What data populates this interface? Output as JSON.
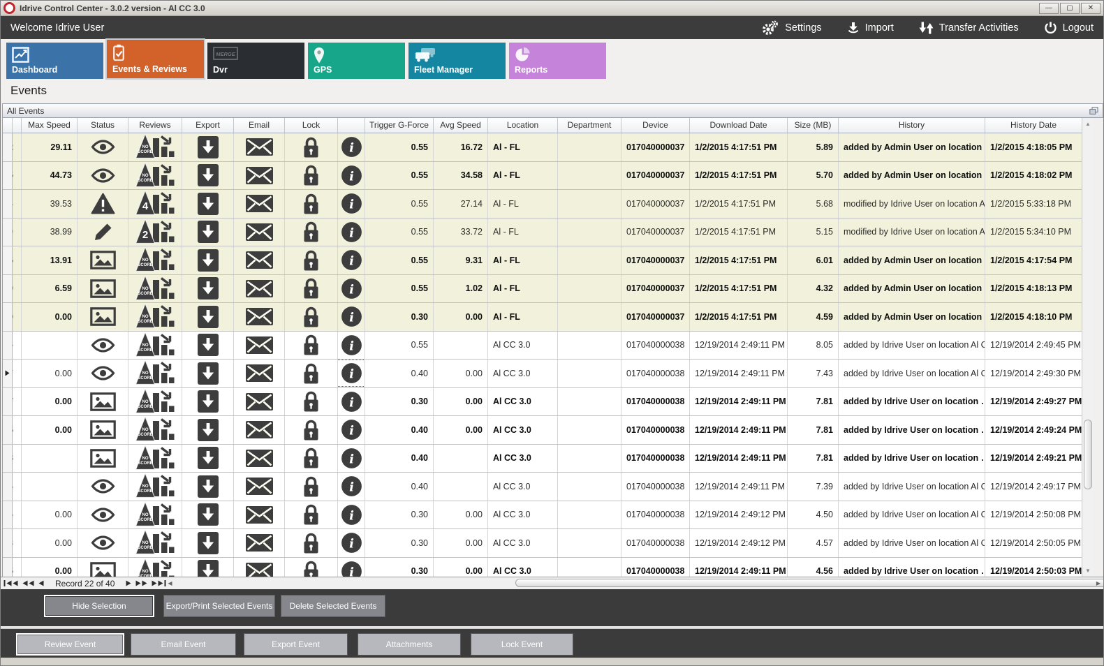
{
  "window": {
    "title": "Idrive Control Center - 3.0.2 version - Al CC 3.0"
  },
  "topbar": {
    "welcome": "Welcome Idrive User",
    "actions": [
      {
        "label": "Settings",
        "icon": "gears-icon"
      },
      {
        "label": "Import",
        "icon": "import-icon"
      },
      {
        "label": "Transfer Activities",
        "icon": "transfer-icon"
      },
      {
        "label": "Logout",
        "icon": "power-icon"
      }
    ]
  },
  "tabs": [
    {
      "label": "Dashboard",
      "icon": "line-chart-icon",
      "color": "#3b73a8",
      "active": false
    },
    {
      "label": "Events & Reviews",
      "icon": "checklist-icon",
      "color": "#d2622a",
      "active": true
    },
    {
      "label": "Dvr",
      "icon": "merge-icon",
      "color": "#2a2e33",
      "active": false
    },
    {
      "label": "GPS",
      "icon": "map-pin-icon",
      "color": "#17a689",
      "active": false
    },
    {
      "label": "Fleet Manager",
      "icon": "vehicles-icon",
      "color": "#1486a2",
      "active": false
    },
    {
      "label": "Reports",
      "icon": "pie-chart-icon",
      "color": "#c584da",
      "active": false
    }
  ],
  "page_title": "Events",
  "panel_title": "All Events",
  "table": {
    "columns": [
      "",
      "",
      "Max Speed",
      "Status",
      "Reviews",
      "Export",
      "Email",
      "Lock",
      "",
      "Trigger G-Force",
      "Avg Speed",
      "Location",
      "Department",
      "Device",
      "Download Date",
      "Size (MB)",
      "History",
      "History Date"
    ],
    "rows": [
      {
        "id": "2",
        "max_speed": "29.11",
        "status_icon": "eye-icon",
        "review_badge": "NO SCORE",
        "trigger_g_force": "0.55",
        "avg_speed": "16.72",
        "location": "Al - FL",
        "department": "",
        "device": "017040000037",
        "download_date": "1/2/2015 4:17:51 PM",
        "size_mb": "5.89",
        "history": "added by Admin User on location …",
        "history_date": "1/2/2015 4:18:05 PM",
        "bold": true,
        "shaded": true,
        "current": false,
        "info_focused": false
      },
      {
        "id": "5",
        "max_speed": "44.73",
        "status_icon": "eye-icon",
        "review_badge": "NO SCORE",
        "trigger_g_force": "0.55",
        "avg_speed": "34.58",
        "location": "Al - FL",
        "department": "",
        "device": "017040000037",
        "download_date": "1/2/2015 4:17:51 PM",
        "size_mb": "5.70",
        "history": "added by Admin User on location …",
        "history_date": "1/2/2015 4:18:02 PM",
        "bold": true,
        "shaded": true,
        "current": false,
        "info_focused": false
      },
      {
        "id": "4",
        "max_speed": "39.53",
        "status_icon": "warning-icon",
        "review_badge": "4",
        "trigger_g_force": "0.55",
        "avg_speed": "27.14",
        "location": "Al - FL",
        "department": "",
        "device": "017040000037",
        "download_date": "1/2/2015 4:17:51 PM",
        "size_mb": "5.68",
        "history": "modified by Idrive User on location Al C…",
        "history_date": "1/2/2015 5:33:18 PM",
        "bold": false,
        "shaded": true,
        "current": false,
        "info_focused": false
      },
      {
        "id": "9",
        "max_speed": "38.99",
        "status_icon": "pencil-icon",
        "review_badge": "2",
        "trigger_g_force": "0.55",
        "avg_speed": "33.72",
        "location": "Al - FL",
        "department": "",
        "device": "017040000037",
        "download_date": "1/2/2015 4:17:51 PM",
        "size_mb": "5.15",
        "history": "modified by Idrive User on location Al C…",
        "history_date": "1/2/2015 5:34:10 PM",
        "bold": false,
        "shaded": true,
        "current": false,
        "info_focused": false
      },
      {
        "id": "5",
        "max_speed": "13.91",
        "status_icon": "image-icon",
        "review_badge": "NO SCORE",
        "trigger_g_force": "0.55",
        "avg_speed": "9.31",
        "location": "Al - FL",
        "department": "",
        "device": "017040000037",
        "download_date": "1/2/2015 4:17:51 PM",
        "size_mb": "6.01",
        "history": "added by Admin User on location …",
        "history_date": "1/2/2015 4:17:54 PM",
        "bold": true,
        "shaded": true,
        "current": false,
        "info_focused": false
      },
      {
        "id": "0",
        "max_speed": "6.59",
        "status_icon": "image-icon",
        "review_badge": "NO SCORE",
        "trigger_g_force": "0.55",
        "avg_speed": "1.02",
        "location": "Al - FL",
        "department": "",
        "device": "017040000037",
        "download_date": "1/2/2015 4:17:51 PM",
        "size_mb": "4.32",
        "history": "added by Admin User on location …",
        "history_date": "1/2/2015 4:18:13 PM",
        "bold": true,
        "shaded": true,
        "current": false,
        "info_focused": false
      },
      {
        "id": "0",
        "max_speed": "0.00",
        "status_icon": "image-icon",
        "review_badge": "NO SCORE",
        "trigger_g_force": "0.30",
        "avg_speed": "0.00",
        "location": "Al - FL",
        "department": "",
        "device": "017040000037",
        "download_date": "1/2/2015 4:17:51 PM",
        "size_mb": "4.59",
        "history": "added by Admin User on location …",
        "history_date": "1/2/2015 4:18:10 PM",
        "bold": true,
        "shaded": true,
        "current": false,
        "info_focused": false
      },
      {
        "id": "5",
        "max_speed": "",
        "status_icon": "eye-icon",
        "review_badge": "NO SCORE",
        "trigger_g_force": "0.55",
        "avg_speed": "",
        "location": "Al CC 3.0",
        "department": "",
        "device": "017040000038",
        "download_date": "12/19/2014 2:49:11 PM",
        "size_mb": "8.05",
        "history": "added by Idrive User on location Al CC …",
        "history_date": "12/19/2014 2:49:45 PM",
        "bold": false,
        "shaded": false,
        "current": false,
        "info_focused": false
      },
      {
        "id": "7",
        "max_speed": "0.00",
        "status_icon": "eye-icon",
        "review_badge": "NO SCORE",
        "trigger_g_force": "0.40",
        "avg_speed": "0.00",
        "location": "Al CC 3.0",
        "department": "",
        "device": "017040000038",
        "download_date": "12/19/2014 2:49:11 PM",
        "size_mb": "7.43",
        "history": "added by Idrive User on location Al CC …",
        "history_date": "12/19/2014 2:49:30 PM",
        "bold": false,
        "shaded": false,
        "current": true,
        "info_focused": true
      },
      {
        "id": "7",
        "max_speed": "0.00",
        "status_icon": "image-icon",
        "review_badge": "NO SCORE",
        "trigger_g_force": "0.30",
        "avg_speed": "0.00",
        "location": "Al CC 3.0",
        "department": "",
        "device": "017040000038",
        "download_date": "12/19/2014 2:49:11 PM",
        "size_mb": "7.81",
        "history": "added by Idrive User on location …",
        "history_date": "12/19/2014 2:49:27 PM",
        "bold": true,
        "shaded": false,
        "current": false,
        "info_focused": false
      },
      {
        "id": "5",
        "max_speed": "0.00",
        "status_icon": "image-icon",
        "review_badge": "NO SCORE",
        "trigger_g_force": "0.40",
        "avg_speed": "0.00",
        "location": "Al CC 3.0",
        "department": "",
        "device": "017040000038",
        "download_date": "12/19/2014 2:49:11 PM",
        "size_mb": "7.81",
        "history": "added by Idrive User on location …",
        "history_date": "12/19/2014 2:49:24 PM",
        "bold": true,
        "shaded": false,
        "current": false,
        "info_focused": false
      },
      {
        "id": "8",
        "max_speed": "",
        "status_icon": "image-icon",
        "review_badge": "NO SCORE",
        "trigger_g_force": "0.40",
        "avg_speed": "",
        "location": "Al CC 3.0",
        "department": "",
        "device": "017040000038",
        "download_date": "12/19/2014 2:49:11 PM",
        "size_mb": "7.81",
        "history": "added by Idrive User on location …",
        "history_date": "12/19/2014 2:49:21 PM",
        "bold": true,
        "shaded": false,
        "current": false,
        "info_focused": false
      },
      {
        "id": "5",
        "max_speed": "",
        "status_icon": "eye-icon",
        "review_badge": "NO SCORE",
        "trigger_g_force": "0.40",
        "avg_speed": "",
        "location": "Al CC 3.0",
        "department": "",
        "device": "017040000038",
        "download_date": "12/19/2014 2:49:11 PM",
        "size_mb": "7.39",
        "history": "added by Idrive User on location Al CC …",
        "history_date": "12/19/2014 2:49:17 PM",
        "bold": false,
        "shaded": false,
        "current": false,
        "info_focused": false
      },
      {
        "id": "5",
        "max_speed": "0.00",
        "status_icon": "eye-icon",
        "review_badge": "NO SCORE",
        "trigger_g_force": "0.30",
        "avg_speed": "0.00",
        "location": "Al CC 3.0",
        "department": "",
        "device": "017040000038",
        "download_date": "12/19/2014 2:49:12 PM",
        "size_mb": "4.50",
        "history": "added by Idrive User on location Al CC …",
        "history_date": "12/19/2014 2:50:08 PM",
        "bold": false,
        "shaded": false,
        "current": false,
        "info_focused": false
      },
      {
        "id": "8",
        "max_speed": "0.00",
        "status_icon": "eye-icon",
        "review_badge": "NO SCORE",
        "trigger_g_force": "0.30",
        "avg_speed": "0.00",
        "location": "Al CC 3.0",
        "department": "",
        "device": "017040000038",
        "download_date": "12/19/2014 2:49:12 PM",
        "size_mb": "4.57",
        "history": "added by Idrive User on location Al CC …",
        "history_date": "12/19/2014 2:50:05 PM",
        "bold": false,
        "shaded": false,
        "current": false,
        "info_focused": false
      },
      {
        "id": "5",
        "max_speed": "0.00",
        "status_icon": "image-icon",
        "review_badge": "NO SCORE",
        "trigger_g_force": "0.30",
        "avg_speed": "0.00",
        "location": "Al CC 3.0",
        "department": "",
        "device": "017040000038",
        "download_date": "12/19/2014 2:49:11 PM",
        "size_mb": "4.56",
        "history": "added by Idrive User on location …",
        "history_date": "12/19/2014 2:50:03 PM",
        "bold": true,
        "shaded": false,
        "current": false,
        "info_focused": false
      }
    ]
  },
  "navigator": {
    "record_text": "Record 22 of 40"
  },
  "selection_actions": [
    "Hide Selection",
    "Export/Print Selected Events",
    "Delete Selected  Events"
  ],
  "event_actions": [
    "Review Event",
    "Email Event",
    "Export Event",
    "Attachments",
    "Lock Event"
  ],
  "colors": {
    "accent_orange": "#d2622a",
    "shaded_row": "#f1f1dc",
    "dark_bar": "#3c3c3c"
  }
}
